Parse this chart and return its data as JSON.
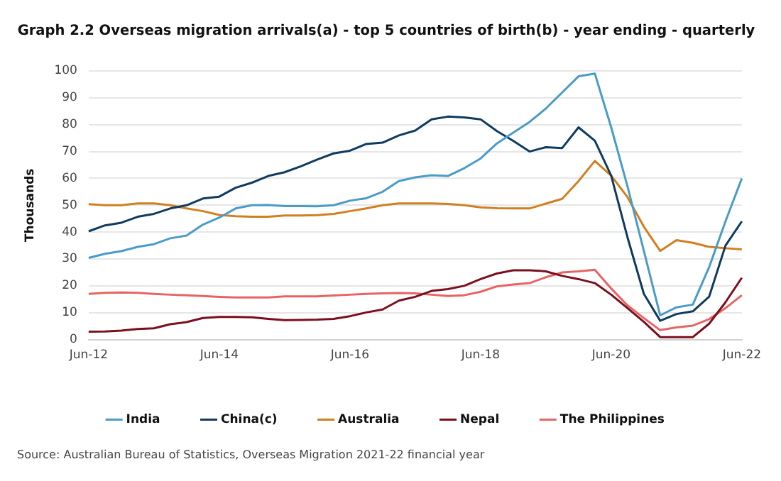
{
  "chart_data": {
    "type": "line",
    "title": "Graph 2.2 Overseas migration arrivals(a) - top 5 countries of birth(b) - year ending - quarterly",
    "ylabel": "Thousands",
    "annotations": [
      "Source: Australian Bureau of Statistics, Overseas Migration 2021-22 financial year"
    ],
    "categories": [
      "Jun-12",
      null,
      null,
      null,
      null,
      null,
      null,
      null,
      "Jun-14",
      null,
      null,
      null,
      null,
      null,
      null,
      null,
      "Jun-16",
      null,
      null,
      null,
      null,
      null,
      null,
      null,
      "Jun-18",
      null,
      null,
      null,
      null,
      null,
      null,
      null,
      "Jun-20",
      null,
      null,
      null,
      null,
      null,
      null,
      null,
      "Jun-22"
    ],
    "series": [
      {
        "name": "India",
        "color": "#4a9cc8",
        "values": [
          30.4,
          31.9,
          32.9,
          34.5,
          35.5,
          37.7,
          38.7,
          42.8,
          45.4,
          48.8,
          50,
          50.1,
          49.7,
          49.7,
          49.6,
          50,
          51.7,
          52.6,
          55,
          59,
          60.4,
          61.2,
          60.9,
          63.8,
          67.4,
          73,
          77,
          81,
          86,
          92,
          98,
          99,
          79,
          57,
          33,
          9,
          12,
          13,
          27,
          44,
          60
        ]
      },
      {
        "name": "China(c)",
        "color": "#0f3b5f",
        "values": [
          40.3,
          42.5,
          43.5,
          45.7,
          46.8,
          48.8,
          50,
          52.5,
          53.2,
          56.5,
          58.4,
          60.9,
          62.3,
          64.5,
          67,
          69.3,
          70.3,
          72.8,
          73.3,
          76,
          77.8,
          82,
          83,
          82.7,
          82,
          77.6,
          74,
          70,
          71.6,
          71.3,
          79,
          74,
          61,
          38,
          17,
          7,
          9.5,
          10.5,
          16,
          35,
          44
        ]
      },
      {
        "name": "Australia",
        "color": "#d17f21",
        "values": [
          50.4,
          50,
          50,
          50.7,
          50.7,
          50,
          48.8,
          47.8,
          46.4,
          45.9,
          45.7,
          45.7,
          46.2,
          46.2,
          46.3,
          46.8,
          47.8,
          48.8,
          50,
          50.7,
          50.7,
          50.7,
          50.5,
          50,
          49.2,
          48.9,
          48.8,
          48.8,
          50.6,
          52.4,
          59,
          66.5,
          61,
          53,
          42,
          33,
          37,
          36,
          34.5,
          34,
          33.6
        ]
      },
      {
        "name": "Nepal",
        "color": "#7a0f1f",
        "values": [
          2.9,
          3,
          3.3,
          3.9,
          4.2,
          5.7,
          6.5,
          8,
          8.4,
          8.4,
          8.3,
          7.7,
          7.2,
          7.3,
          7.4,
          7.7,
          8.7,
          10.1,
          11.2,
          14.5,
          15.9,
          18.1,
          18.8,
          20,
          22.5,
          24.6,
          25.8,
          25.8,
          25.4,
          23.7,
          22.5,
          21,
          16.7,
          11.7,
          6.6,
          0.9,
          0.9,
          0.9,
          5.9,
          13.9,
          23
        ]
      },
      {
        "name": "The Philippines",
        "color": "#e86464",
        "values": [
          17,
          17.4,
          17.5,
          17.4,
          17,
          16.7,
          16.5,
          16.2,
          15.9,
          15.7,
          15.7,
          15.7,
          16.1,
          16.1,
          16.1,
          16.4,
          16.7,
          17,
          17.2,
          17.3,
          17.2,
          16.7,
          16.2,
          16.5,
          17.8,
          19.8,
          20.5,
          21,
          23.2,
          25,
          25.4,
          26,
          19,
          12.7,
          8,
          3.5,
          4.5,
          5.2,
          7.6,
          11.7,
          16.5
        ]
      }
    ],
    "ylim": [
      0,
      100
    ],
    "yticks": [
      0,
      10,
      20,
      30,
      40,
      50,
      60,
      70,
      80,
      90,
      100
    ],
    "grid": "y",
    "legend": "bottom",
    "marker": "none",
    "line_style": "solid"
  }
}
